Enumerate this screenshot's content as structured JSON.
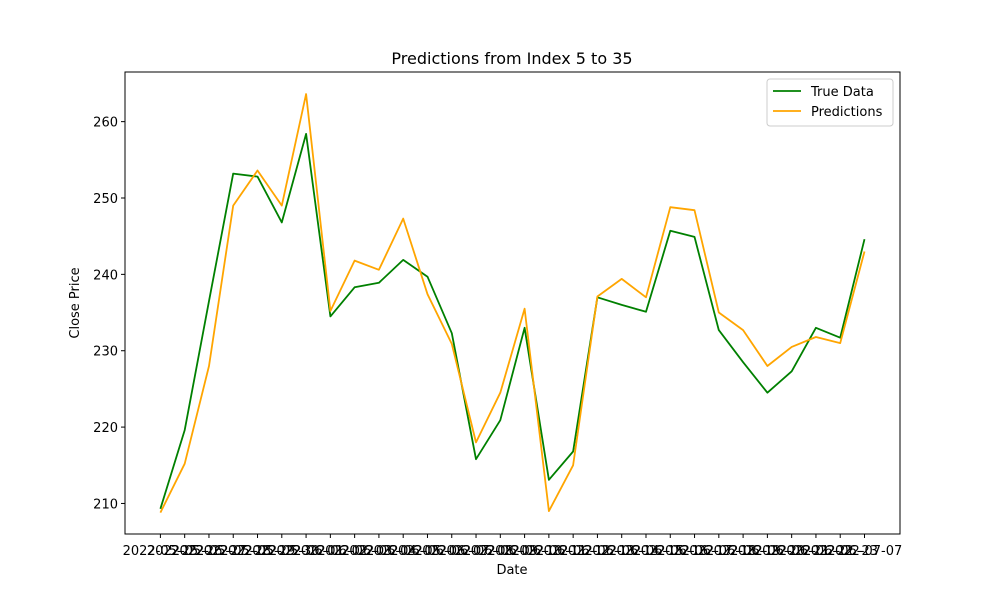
{
  "chart_data": {
    "type": "line",
    "title": "Predictions from Index 5 to 35",
    "xlabel": "Date",
    "ylabel": "Close Price",
    "ylim": [
      206,
      266.5
    ],
    "yticks": [
      210,
      220,
      230,
      240,
      250,
      260
    ],
    "grid": false,
    "legend_position": "top-right",
    "x": [
      "2022-05-25",
      "2022-05-26",
      "2022-05-27",
      "2022-05-28",
      "2022-05-29",
      "2022-05-30",
      "2022-06-01",
      "2022-06-02",
      "2022-06-03",
      "2022-06-04",
      "2022-06-05",
      "2022-06-06",
      "2022-06-07",
      "2022-06-08",
      "2022-06-09",
      "2022-06-10",
      "2022-06-11",
      "2022-06-12",
      "2022-06-13",
      "2022-06-14",
      "2022-06-15",
      "2022-06-16",
      "2022-06-17",
      "2022-06-18",
      "2022-06-19",
      "2022-06-20",
      "2022-06-21",
      "2022-06-22",
      "2022-06-23",
      "2022-07-07"
    ],
    "series": [
      {
        "name": "True Data",
        "color": "#008000",
        "values": [
          209.3,
          219.6,
          236.5,
          253.2,
          252.8,
          246.8,
          258.4,
          234.5,
          238.3,
          238.9,
          241.9,
          239.7,
          232.3,
          215.8,
          220.9,
          233.0,
          213.1,
          216.8,
          237.0,
          236.0,
          235.1,
          245.7,
          244.9,
          232.7,
          228.5,
          224.5,
          227.3,
          233.0,
          231.7,
          244.6
        ]
      },
      {
        "name": "Predictions",
        "color": "#FFA500",
        "values": [
          208.8,
          215.2,
          228.0,
          249.0,
          253.6,
          249.0,
          263.6,
          235.2,
          241.8,
          240.6,
          247.3,
          237.4,
          230.9,
          218.0,
          224.5,
          235.5,
          209.0,
          215.0,
          237.1,
          239.4,
          237.0,
          248.8,
          248.4,
          235.0,
          232.7,
          228.0,
          230.5,
          231.8,
          231.0,
          243.0
        ]
      }
    ]
  }
}
